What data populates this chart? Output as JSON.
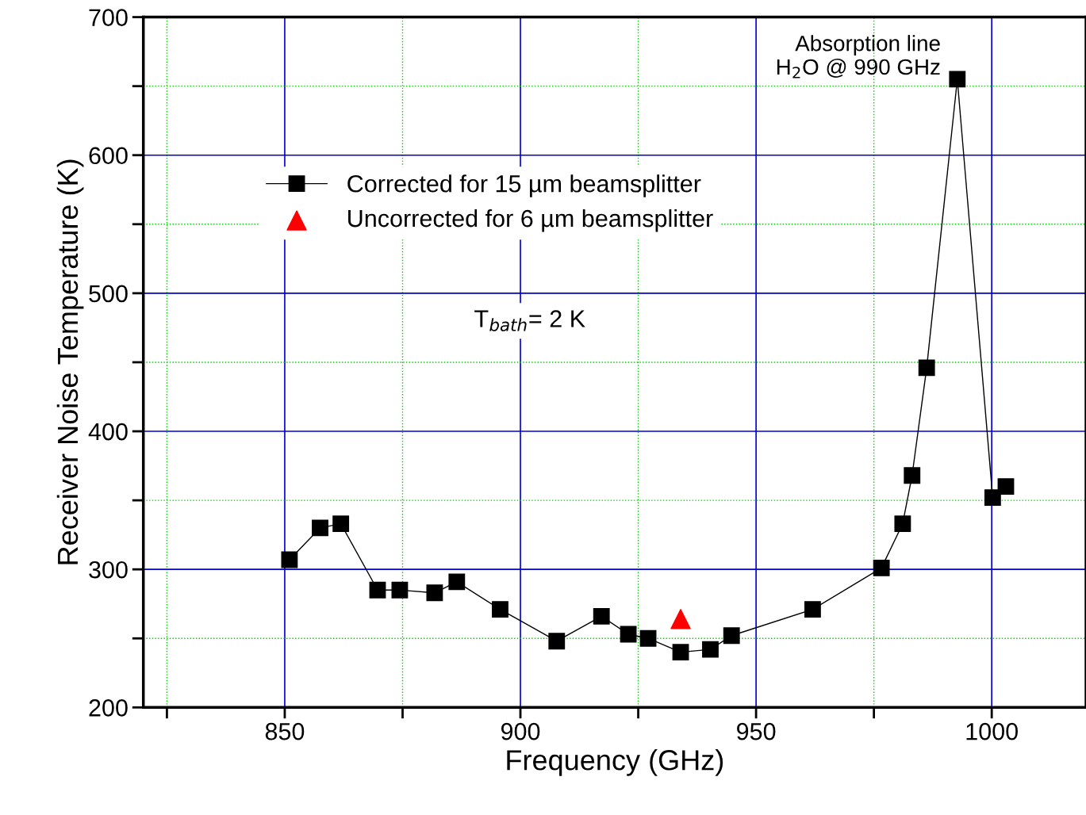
{
  "chart_data": {
    "type": "line",
    "xlabel": "Frequency (GHz)",
    "ylabel": "Receiver Noise Temperature (K)",
    "xlim": [
      820,
      1020
    ],
    "ylim": [
      200,
      700
    ],
    "xticks": [
      {
        "value": 825,
        "label": null
      },
      850,
      {
        "value": 875,
        "label": null
      },
      900,
      {
        "value": 925,
        "label": null
      },
      950,
      {
        "value": 975,
        "label": null
      },
      1000
    ],
    "yticks": [
      200,
      {
        "value": 250,
        "label": null
      },
      300,
      {
        "value": 350,
        "label": null
      },
      400,
      {
        "value": 450,
        "label": null
      },
      500,
      {
        "value": 550,
        "label": null
      },
      600,
      {
        "value": 650,
        "label": null
      },
      700
    ],
    "grid": true,
    "legend": "top left",
    "series": [
      {
        "name": "Corrected for 15 µm beamsplitter",
        "color": "#000000",
        "marker": "square",
        "line_style": "solid",
        "x": [
          851.0,
          857.5,
          861.9,
          869.7,
          874.4,
          881.8,
          886.5,
          895.7,
          907.7,
          917.2,
          922.9,
          927.1,
          934.0,
          940.3,
          944.8,
          962.0,
          976.6,
          981.1,
          983.1,
          986.2,
          992.7,
          1000.2,
          1003.0
        ],
        "values": [
          307,
          330,
          333,
          285,
          285,
          283,
          291,
          271,
          248,
          266,
          253,
          250,
          240,
          242,
          252,
          271,
          301,
          333,
          368,
          446,
          655,
          352,
          360
        ]
      },
      {
        "name": "Uncorrected for 6 µm beamsplitter",
        "color": "#ff0000",
        "type": "scatter",
        "marker": "triangle",
        "x": [
          934.0
        ],
        "values": [
          264
        ]
      }
    ],
    "annotations": [
      {
        "text": "Absorption line\nH$_{2}$O @ 990 GHz",
        "x": 992.7,
        "y": 655
      },
      "T$_{bath}$= 2 K"
    ]
  }
}
